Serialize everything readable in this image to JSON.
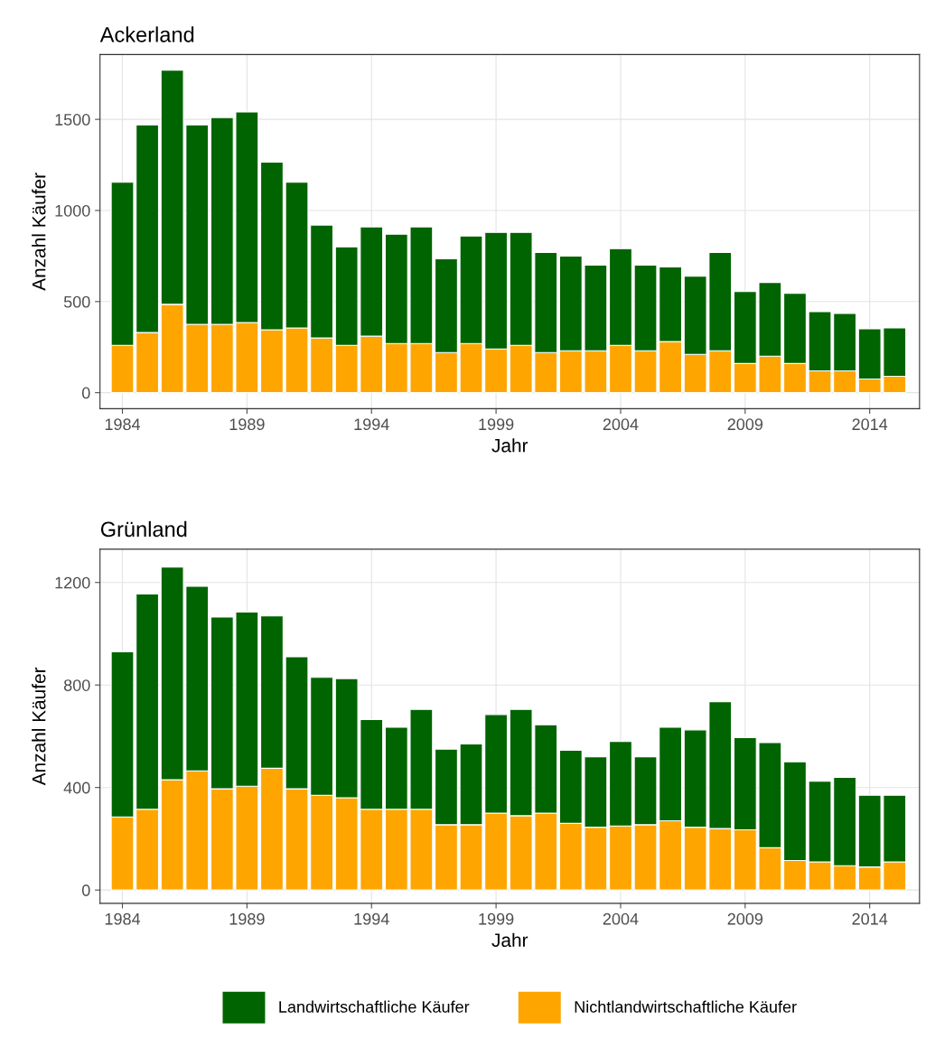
{
  "chart_data": [
    {
      "type": "bar",
      "title": "Ackerland",
      "xlabel": "Jahr",
      "ylabel": "Anzahl Käufer",
      "stacked": true,
      "grid": true,
      "x": [
        1984,
        1985,
        1986,
        1987,
        1988,
        1989,
        1990,
        1991,
        1992,
        1993,
        1994,
        1995,
        1996,
        1997,
        1998,
        1999,
        2000,
        2001,
        2002,
        2003,
        2004,
        2005,
        2006,
        2007,
        2008,
        2009,
        2010,
        2011,
        2012,
        2013,
        2014,
        2015
      ],
      "xlim": [
        1983.1,
        2016
      ],
      "xticks": [
        1984,
        1989,
        1994,
        1999,
        2004,
        2009,
        2014
      ],
      "ylim": [
        -88,
        1856
      ],
      "yticks": [
        0,
        500,
        1000,
        1500
      ],
      "series": [
        {
          "color": "#ffa500",
          "values": [
            260,
            330,
            485,
            375,
            375,
            385,
            345,
            355,
            300,
            260,
            310,
            270,
            270,
            220,
            270,
            240,
            260,
            220,
            230,
            230,
            260,
            230,
            280,
            210,
            230,
            160,
            200,
            160,
            120,
            120,
            75,
            90
          ]
        },
        {
          "color": "#006400",
          "values": [
            895,
            1140,
            1285,
            1095,
            1135,
            1155,
            920,
            800,
            620,
            540,
            600,
            600,
            640,
            515,
            590,
            640,
            620,
            550,
            520,
            470,
            530,
            470,
            410,
            430,
            540,
            395,
            405,
            385,
            325,
            315,
            275,
            265
          ]
        }
      ]
    },
    {
      "type": "bar",
      "title": "Grünland",
      "xlabel": "Jahr",
      "ylabel": "Anzahl Käufer",
      "stacked": true,
      "grid": true,
      "legend": "bottom",
      "x": [
        1984,
        1985,
        1986,
        1987,
        1988,
        1989,
        1990,
        1991,
        1992,
        1993,
        1994,
        1995,
        1996,
        1997,
        1998,
        1999,
        2000,
        2001,
        2002,
        2003,
        2004,
        2005,
        2006,
        2007,
        2008,
        2009,
        2010,
        2011,
        2012,
        2013,
        2014,
        2015
      ],
      "xlim": [
        1983.1,
        2016
      ],
      "xticks": [
        1984,
        1989,
        1994,
        1999,
        2004,
        2009,
        2014
      ],
      "ylim": [
        -52,
        1330
      ],
      "yticks": [
        0,
        400,
        800,
        1200
      ],
      "series": [
        {
          "name": "Nichtlandwirtschaftliche Käufer",
          "color": "#ffa500",
          "values": [
            285,
            315,
            430,
            465,
            395,
            405,
            475,
            395,
            370,
            360,
            315,
            315,
            315,
            255,
            255,
            300,
            290,
            300,
            260,
            245,
            250,
            255,
            270,
            245,
            240,
            235,
            165,
            115,
            110,
            95,
            90,
            110
          ]
        },
        {
          "name": "Landwirtschaftliche Käufer",
          "color": "#006400",
          "values": [
            645,
            840,
            830,
            720,
            670,
            680,
            595,
            515,
            460,
            465,
            350,
            320,
            390,
            295,
            315,
            385,
            415,
            345,
            285,
            275,
            330,
            265,
            365,
            380,
            495,
            360,
            410,
            385,
            315,
            345,
            280,
            260
          ]
        }
      ]
    }
  ]
}
